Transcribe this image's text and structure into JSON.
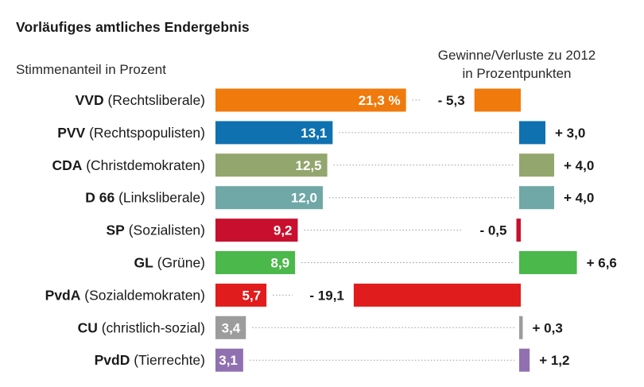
{
  "title": "Vorläufiges amtliches Endergebnis",
  "left_header": "Stimmenanteil in Prozent",
  "right_header": [
    "Gewinne/Verluste zu 2012",
    "in Prozentpunkten"
  ],
  "chart_data": {
    "type": "bar",
    "title": "Vorläufiges amtliches Endergebnis",
    "xlabel": "Stimmenanteil in Prozent",
    "secondary_label": "Gewinne/Verluste zu 2012 in Prozentpunkten",
    "categories": [
      "VVD",
      "PVV",
      "CDA",
      "D 66",
      "SP",
      "GL",
      "PvdA",
      "CU",
      "PvdD"
    ],
    "descriptors": [
      "(Rechtsliberale)",
      "(Rechtspopulisten)",
      "(Christdemokraten)",
      "(Linksliberale)",
      "(Sozialisten)",
      "(Grüne)",
      "(Sozialdemokraten)",
      "(christlich-sozial)",
      "(Tierrechte)"
    ],
    "series": [
      {
        "name": "Stimmenanteil in Prozent",
        "values": [
          21.3,
          13.1,
          12.5,
          12.0,
          9.2,
          8.9,
          5.7,
          3.4,
          3.1
        ],
        "labels": [
          "21,3 %",
          "13,1",
          "12,5",
          "12,0",
          "9,2",
          "8,9",
          "5,7",
          "3,4",
          "3,1"
        ]
      },
      {
        "name": "Gewinne/Verluste zu 2012",
        "values": [
          -5.3,
          3.0,
          4.0,
          4.0,
          -0.5,
          6.6,
          -19.1,
          0.3,
          1.2
        ],
        "labels": [
          "- 5,3",
          "+ 3,0",
          "+ 4,0",
          "+ 4,0",
          "- 0,5",
          "+ 6,6",
          "- 19,1",
          "+ 0,3",
          "+ 1,2"
        ]
      }
    ],
    "colors": [
      "#f07a0c",
      "#0f71b0",
      "#93a66d",
      "#6fa8a6",
      "#c8102e",
      "#4ab84a",
      "#e11c1c",
      "#9c9c9c",
      "#9070b0"
    ]
  }
}
